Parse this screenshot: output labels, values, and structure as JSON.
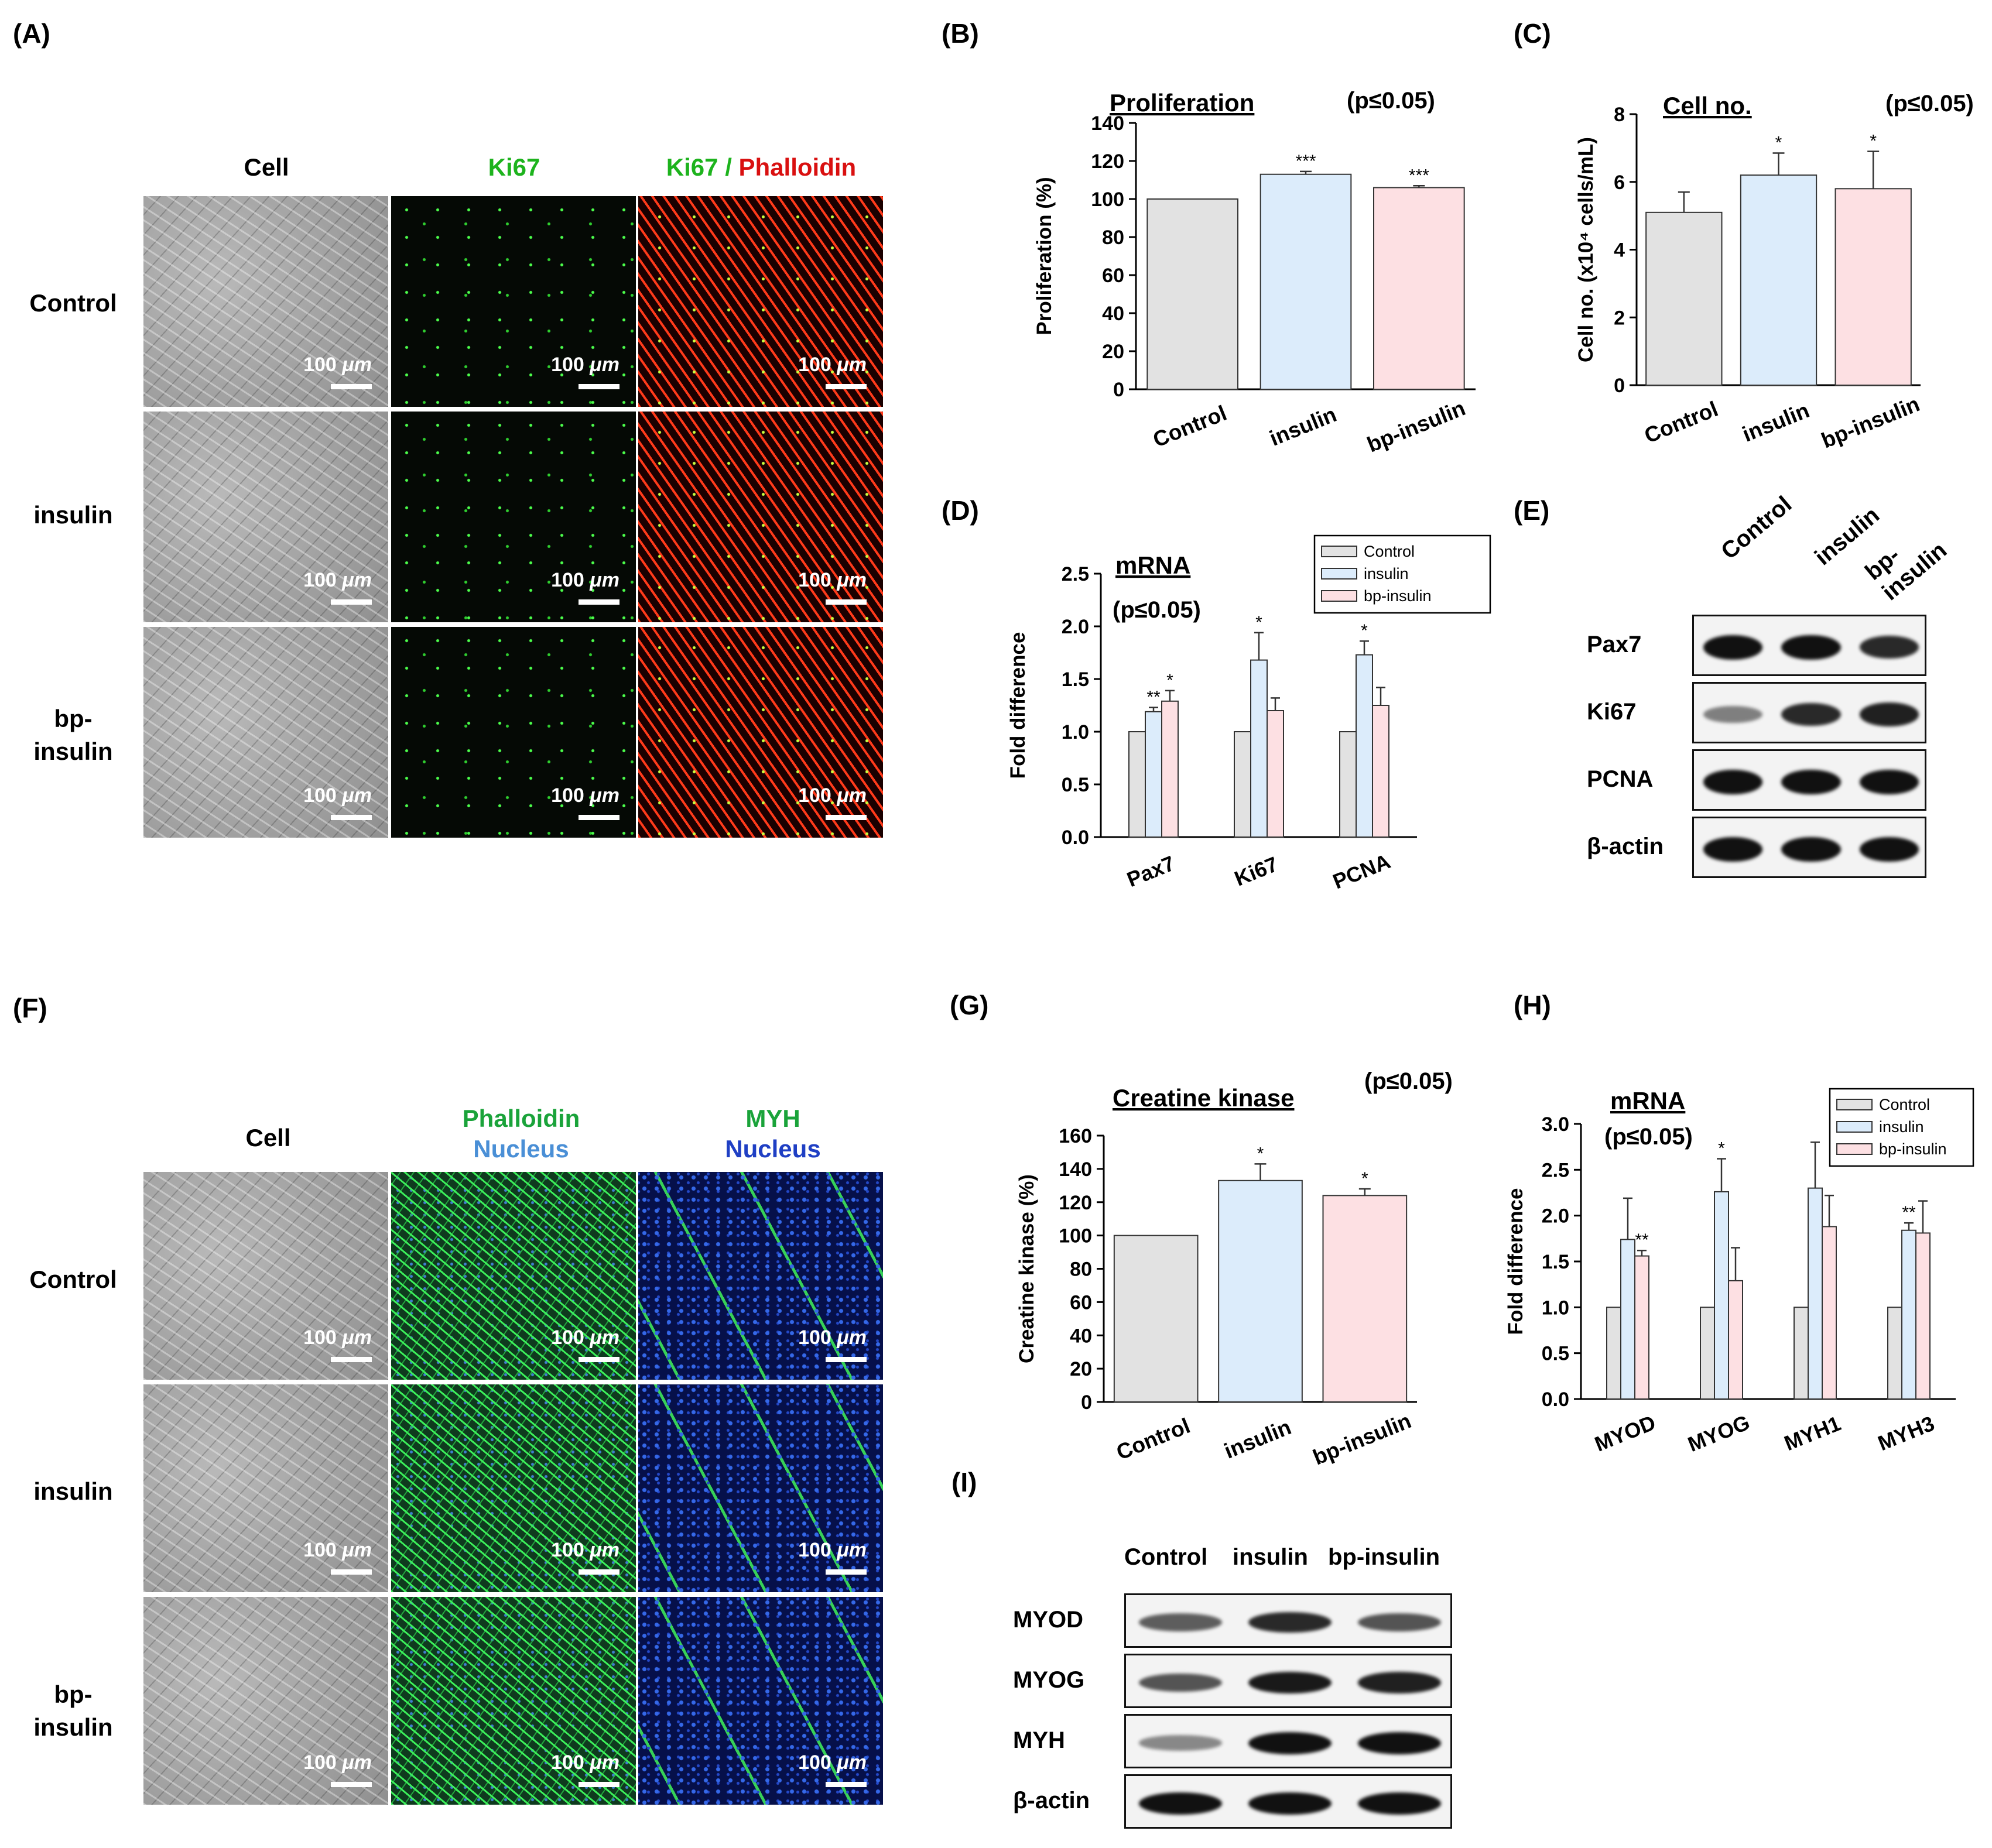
{
  "panel_labels": {
    "A": "(A)",
    "B": "(B)",
    "C": "(C)",
    "D": "(D)",
    "E": "(E)",
    "F": "(F)",
    "G": "(G)",
    "H": "(H)",
    "I": "(I)"
  },
  "scale_bar": {
    "value": "100",
    "unit": "μm"
  },
  "panel_A": {
    "col_headers": {
      "cell": "Cell",
      "ki67": "Ki67",
      "merge_a": "Ki67",
      "merge_sep": "/",
      "merge_b": "Phalloidin"
    },
    "rows": [
      "Control",
      "insulin",
      "bp-insulin"
    ],
    "row_lines": [
      [
        "Control"
      ],
      [
        "insulin"
      ],
      [
        "bp-",
        "insulin"
      ]
    ],
    "colors": {
      "green": "#1db31d",
      "red": "#d91010"
    }
  },
  "panel_E": {
    "lanes": [
      "Control",
      "insulin",
      "bp-insulin"
    ],
    "proteins": [
      "Pax7",
      "Ki67",
      "PCNA",
      "β-actin"
    ],
    "band_intensity": [
      [
        1.0,
        1.0,
        0.85
      ],
      [
        0.35,
        0.85,
        0.9
      ],
      [
        1.0,
        1.0,
        1.0
      ],
      [
        1.0,
        1.0,
        1.0
      ]
    ]
  },
  "panel_F": {
    "col_headers": {
      "cell": "Cell",
      "phalloidin": "Phalloidin",
      "nucleus1": "Nucleus",
      "myh": "MYH",
      "nucleus2": "Nucleus"
    },
    "rows": [
      "Control",
      "insulin",
      "bp-insulin"
    ],
    "row_lines": [
      [
        "Control"
      ],
      [
        "insulin"
      ],
      [
        "bp-",
        "insulin"
      ]
    ],
    "colors": {
      "green": "#1aa33a",
      "light_blue": "#4a8fd6",
      "blue": "#1f3fc4"
    }
  },
  "panel_I": {
    "lanes": [
      "Control",
      "insulin",
      "bp-insulin"
    ],
    "proteins": [
      "MYOD",
      "MYOG",
      "MYH",
      "β-actin"
    ],
    "band_intensity": [
      [
        0.55,
        0.85,
        0.6
      ],
      [
        0.6,
        0.95,
        0.9
      ],
      [
        0.3,
        1.0,
        1.0
      ],
      [
        1.0,
        1.0,
        1.0
      ]
    ]
  },
  "colors": {
    "control": "#e2e2e2",
    "insulin": "#dcecfb",
    "bp_insulin": "#fde0e3"
  },
  "chart_data": [
    {
      "id": "B",
      "type": "bar",
      "title": "Proliferation",
      "significance": "(p≤0.05)",
      "categories": [
        "Control",
        "insulin",
        "bp-insulin"
      ],
      "values": [
        100,
        113,
        106
      ],
      "errors": [
        0,
        1.5,
        1
      ],
      "stars": [
        "",
        "***",
        "***"
      ],
      "ylabel": "Proliferation (%)",
      "ylim": [
        0,
        140
      ],
      "yticks": [
        0,
        20,
        40,
        60,
        80,
        100,
        120,
        140
      ]
    },
    {
      "id": "C",
      "type": "bar",
      "title": "Cell no.",
      "significance": "(p≤0.05)",
      "categories": [
        "Control",
        "insulin",
        "bp-insulin"
      ],
      "values": [
        5.1,
        6.2,
        5.8
      ],
      "errors": [
        0.6,
        0.65,
        1.1
      ],
      "stars": [
        "",
        "*",
        "*"
      ],
      "ylabel": "Cell no. (x10⁴ cells/mL)",
      "ylim": [
        0,
        8
      ],
      "yticks": [
        0,
        2,
        4,
        6,
        8
      ]
    },
    {
      "id": "D",
      "type": "bar",
      "title": "mRNA",
      "significance": "(p≤0.05)",
      "categories": [
        "Pax7",
        "Ki67",
        "PCNA"
      ],
      "series": [
        {
          "name": "Control",
          "values": [
            1.0,
            1.0,
            1.0
          ],
          "errors": [
            0,
            0,
            0
          ],
          "stars": [
            "",
            "",
            ""
          ]
        },
        {
          "name": "insulin",
          "values": [
            1.19,
            1.68,
            1.73
          ],
          "errors": [
            0.04,
            0.26,
            0.13
          ],
          "stars": [
            "**",
            "*",
            "*"
          ]
        },
        {
          "name": "bp-insulin",
          "values": [
            1.29,
            1.2,
            1.25
          ],
          "errors": [
            0.1,
            0.12,
            0.17
          ],
          "stars": [
            "*",
            "",
            ""
          ]
        }
      ],
      "ylabel": "Fold difference",
      "ylim": [
        0,
        2.5
      ],
      "yticks": [
        "0.0",
        "0.5",
        "1.0",
        "1.5",
        "2.0",
        "2.5"
      ],
      "legend": "top-right"
    },
    {
      "id": "G",
      "type": "bar",
      "title": "Creatine kinase",
      "significance": "(p≤0.05)",
      "categories": [
        "Control",
        "insulin",
        "bp-insulin"
      ],
      "values": [
        100,
        133,
        124
      ],
      "errors": [
        0,
        10,
        4
      ],
      "stars": [
        "",
        "*",
        "*"
      ],
      "ylabel": "Creatine kinase (%)",
      "ylim": [
        0,
        160
      ],
      "yticks": [
        0,
        20,
        40,
        60,
        80,
        100,
        120,
        140,
        160
      ]
    },
    {
      "id": "H",
      "type": "bar",
      "title": "mRNA",
      "significance": "(p≤0.05)",
      "categories": [
        "MYOD",
        "MYOG",
        "MYH1",
        "MYH3"
      ],
      "series": [
        {
          "name": "Control",
          "values": [
            1.0,
            1.0,
            1.0,
            1.0
          ],
          "errors": [
            0,
            0,
            0,
            0
          ],
          "stars": [
            "",
            "",
            "",
            ""
          ]
        },
        {
          "name": "insulin",
          "values": [
            1.74,
            2.26,
            2.3,
            1.84
          ],
          "errors": [
            0.45,
            0.36,
            0.5,
            0.08
          ],
          "stars": [
            "",
            "*",
            "",
            "**"
          ]
        },
        {
          "name": "bp-insulin",
          "values": [
            1.56,
            1.29,
            1.88,
            1.81
          ],
          "errors": [
            0.06,
            0.36,
            0.34,
            0.35
          ],
          "stars": [
            "**",
            "",
            "",
            ""
          ]
        }
      ],
      "ylabel": "Fold difference",
      "ylim": [
        0,
        3.0
      ],
      "yticks": [
        "0.0",
        "0.5",
        "1.0",
        "1.5",
        "2.0",
        "2.5",
        "3.0"
      ],
      "legend": "top-right"
    }
  ]
}
